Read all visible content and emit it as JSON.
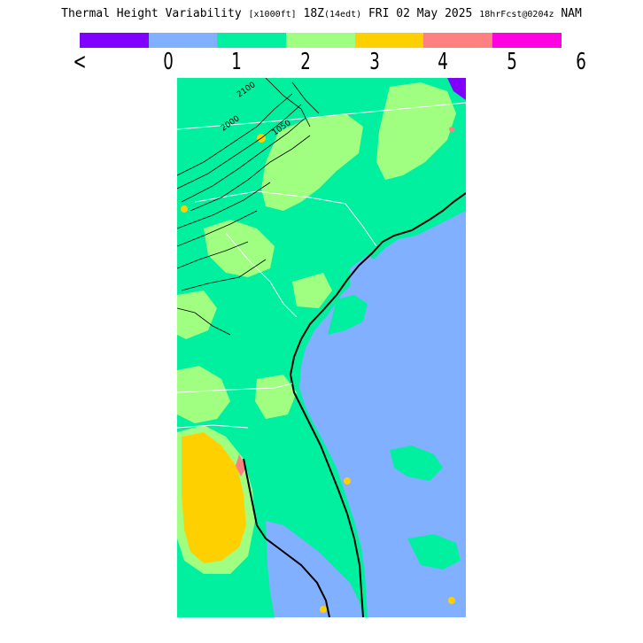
{
  "header": {
    "title_main": "Thermal Height Variability",
    "title_units": "[x1000ft]",
    "title_valid": "18Z",
    "title_local": "(14edt)",
    "title_date": "FRI 02 May 2025",
    "title_fcst": "18hrFcst@0204z",
    "title_model": "NAM"
  },
  "colorbar": {
    "colors": [
      "#8000ff",
      "#80b0ff",
      "#00f0a0",
      "#a0ff80",
      "#ffd000",
      "#ff8080",
      "#ff00e0"
    ],
    "labels": [
      "<",
      "0",
      "1",
      "2",
      "3",
      "4",
      "5",
      "6"
    ]
  },
  "map": {
    "contour_labels": [
      "2100",
      "2000",
      "1050"
    ],
    "legend_classes": {
      "lt0": "#8000ff",
      "0to1": "#80b0ff",
      "1to2": "#00f0a0",
      "2to3": "#a0ff80",
      "3to4": "#ffd000",
      "4to5": "#ff8080",
      "5to6": "#ff00e0"
    }
  }
}
